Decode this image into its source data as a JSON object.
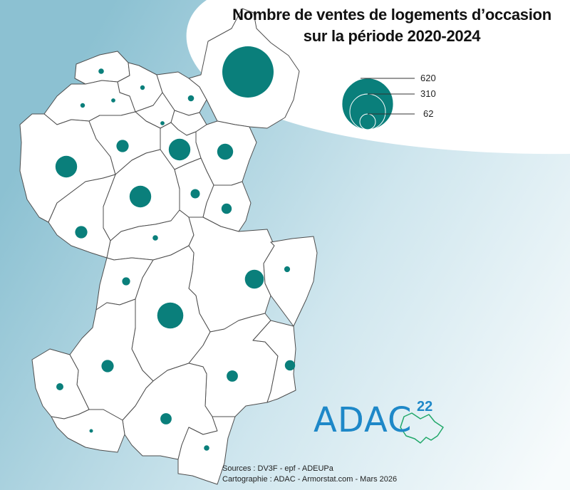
{
  "title": {
    "line1": "Nombre de ventes de logements d’occasion",
    "line2": "sur la période 2020-2024"
  },
  "legend": {
    "values": [
      "620",
      "310",
      "62"
    ]
  },
  "symbols": [
    {
      "id": "s01",
      "value": 7
    },
    {
      "id": "s02",
      "value": 5
    },
    {
      "id": "s03",
      "value": 5
    },
    {
      "id": "s04",
      "value": 4
    },
    {
      "id": "s05",
      "value": 9
    },
    {
      "id": "s06",
      "value": 620
    },
    {
      "id": "s07",
      "value": 4
    },
    {
      "id": "s08",
      "value": 35
    },
    {
      "id": "s09",
      "value": 110
    },
    {
      "id": "s10",
      "value": 60
    },
    {
      "id": "s11",
      "value": 110
    },
    {
      "id": "s12",
      "value": 110
    },
    {
      "id": "s13",
      "value": 20
    },
    {
      "id": "s14",
      "value": 25
    },
    {
      "id": "s15",
      "value": 35
    },
    {
      "id": "s16",
      "value": 7
    },
    {
      "id": "s17",
      "value": 15
    },
    {
      "id": "s18",
      "value": 8
    },
    {
      "id": "s19",
      "value": 85
    },
    {
      "id": "s20",
      "value": 160
    },
    {
      "id": "s21",
      "value": 35
    },
    {
      "id": "s22",
      "value": 25
    },
    {
      "id": "s23",
      "value": 12
    },
    {
      "id": "s24",
      "value": 30
    },
    {
      "id": "s25",
      "value": 30
    },
    {
      "id": "s26",
      "value": 3
    },
    {
      "id": "s27",
      "value": 7
    }
  ],
  "logo": {
    "text": "ADAC",
    "number": "22"
  },
  "sources": {
    "line1": "Sources : DV3F - epf - ADEUPa",
    "line2": "Cartographie : ADAC - Armorstat.com - Mars 2026"
  },
  "colors": {
    "symbol": "#0a7f7b",
    "background_dark": "#8fc3d4",
    "background_light": "#f4f9fb",
    "commune_fill": "#ffffff",
    "commune_stroke": "#4d4d4d",
    "logo": "#1e88c8",
    "logo_outline": "#21a86a"
  }
}
